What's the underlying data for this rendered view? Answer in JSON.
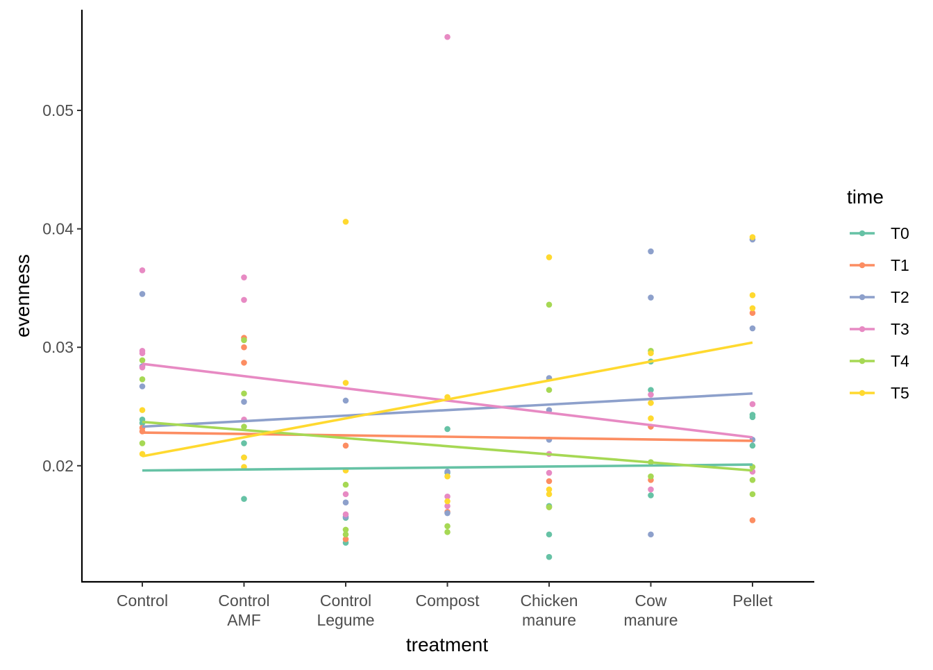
{
  "chart_data": {
    "type": "scatter",
    "xlabel": "treatment",
    "ylabel": "evenness",
    "categories": [
      [
        "Control"
      ],
      [
        "Control",
        "AMF"
      ],
      [
        "Control",
        "Legume"
      ],
      [
        "Compost"
      ],
      [
        "Chicken",
        "manure"
      ],
      [
        "Cow",
        "manure"
      ],
      [
        "Pellet"
      ]
    ],
    "ylim": [
      0.0102,
      0.0585
    ],
    "yticks": [
      0.02,
      0.03,
      0.04,
      0.05
    ],
    "ytick_labels": [
      "0.02",
      "0.03",
      "0.04",
      "0.05"
    ],
    "grid": false,
    "legend": {
      "title": "time",
      "position": "right"
    },
    "series": [
      {
        "name": "T0",
        "color": "#66C2A5",
        "points": [
          [
            1,
            0.0239
          ],
          [
            1,
            0.0236
          ],
          [
            2,
            0.0172
          ],
          [
            2,
            0.0207
          ],
          [
            2,
            0.0219
          ],
          [
            3,
            0.0135
          ],
          [
            3,
            0.0156
          ],
          [
            4,
            0.0231
          ],
          [
            4,
            0.0194
          ],
          [
            5,
            0.0123
          ],
          [
            5,
            0.0142
          ],
          [
            5,
            0.0166
          ],
          [
            6,
            0.0264
          ],
          [
            6,
            0.0288
          ],
          [
            6,
            0.0175
          ],
          [
            7,
            0.0243
          ],
          [
            7,
            0.0241
          ],
          [
            7,
            0.0217
          ]
        ],
        "trend": [
          0.0196,
          0.0201
        ]
      },
      {
        "name": "T1",
        "color": "#FC8D62",
        "points": [
          [
            1,
            0.0232
          ],
          [
            1,
            0.0229
          ],
          [
            2,
            0.0308
          ],
          [
            2,
            0.03
          ],
          [
            2,
            0.0287
          ],
          [
            3,
            0.0217
          ],
          [
            3,
            0.0138
          ],
          [
            4,
            0.0161
          ],
          [
            5,
            0.0187
          ],
          [
            5,
            0.0165
          ],
          [
            6,
            0.0233
          ],
          [
            6,
            0.0188
          ],
          [
            7,
            0.0329
          ],
          [
            7,
            0.0154
          ]
        ],
        "trend": [
          0.0228,
          0.0221
        ]
      },
      {
        "name": "T2",
        "color": "#8DA0CB",
        "points": [
          [
            1,
            0.0345
          ],
          [
            1,
            0.0284
          ],
          [
            1,
            0.0267
          ],
          [
            2,
            0.0254
          ],
          [
            3,
            0.0255
          ],
          [
            3,
            0.0169
          ],
          [
            3,
            0.0157
          ],
          [
            4,
            0.0195
          ],
          [
            4,
            0.016
          ],
          [
            5,
            0.0274
          ],
          [
            5,
            0.0222
          ],
          [
            5,
            0.0247
          ],
          [
            6,
            0.0381
          ],
          [
            6,
            0.0342
          ],
          [
            6,
            0.0142
          ],
          [
            7,
            0.0391
          ],
          [
            7,
            0.0316
          ],
          [
            7,
            0.0222
          ]
        ],
        "trend": [
          0.0233,
          0.0261
        ]
      },
      {
        "name": "T3",
        "color": "#E78AC3",
        "points": [
          [
            1,
            0.0365
          ],
          [
            1,
            0.0297
          ],
          [
            1,
            0.0295
          ],
          [
            1,
            0.0283
          ],
          [
            2,
            0.0359
          ],
          [
            2,
            0.034
          ],
          [
            2,
            0.0239
          ],
          [
            3,
            0.0176
          ],
          [
            3,
            0.0159
          ],
          [
            4,
            0.0562
          ],
          [
            4,
            0.0174
          ],
          [
            4,
            0.0166
          ],
          [
            5,
            0.021
          ],
          [
            5,
            0.0194
          ],
          [
            6,
            0.026
          ],
          [
            6,
            0.018
          ],
          [
            7,
            0.0252
          ],
          [
            7,
            0.0195
          ]
        ],
        "trend": [
          0.0286,
          0.0224
        ]
      },
      {
        "name": "T4",
        "color": "#A6D854",
        "points": [
          [
            1,
            0.0289
          ],
          [
            1,
            0.0273
          ],
          [
            1,
            0.0219
          ],
          [
            2,
            0.0306
          ],
          [
            2,
            0.0261
          ],
          [
            2,
            0.0233
          ],
          [
            3,
            0.0184
          ],
          [
            3,
            0.0146
          ],
          [
            3,
            0.0142
          ],
          [
            4,
            0.0149
          ],
          [
            4,
            0.0144
          ],
          [
            5,
            0.0336
          ],
          [
            5,
            0.0264
          ],
          [
            5,
            0.0165
          ],
          [
            6,
            0.0297
          ],
          [
            6,
            0.0203
          ],
          [
            6,
            0.0191
          ],
          [
            7,
            0.0199
          ],
          [
            7,
            0.0188
          ],
          [
            7,
            0.0176
          ]
        ],
        "trend": [
          0.0237,
          0.0196
        ]
      },
      {
        "name": "T5",
        "color": "#FFD92F",
        "points": [
          [
            1,
            0.0247
          ],
          [
            1,
            0.021
          ],
          [
            2,
            0.0207
          ],
          [
            2,
            0.0199
          ],
          [
            3,
            0.0406
          ],
          [
            3,
            0.027
          ],
          [
            3,
            0.0196
          ],
          [
            4,
            0.0258
          ],
          [
            4,
            0.0191
          ],
          [
            4,
            0.017
          ],
          [
            5,
            0.0376
          ],
          [
            5,
            0.018
          ],
          [
            5,
            0.0176
          ],
          [
            6,
            0.0295
          ],
          [
            6,
            0.0253
          ],
          [
            6,
            0.024
          ],
          [
            7,
            0.0393
          ],
          [
            7,
            0.0344
          ],
          [
            7,
            0.0333
          ]
        ],
        "trend": [
          0.0208,
          0.0304
        ]
      }
    ]
  }
}
